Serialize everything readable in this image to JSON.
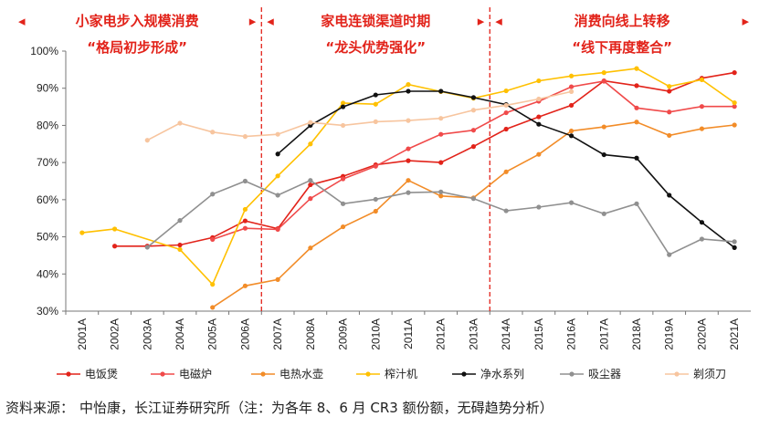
{
  "chart_data": {
    "type": "line",
    "categories": [
      "2001A",
      "2002A",
      "2003A",
      "2004A",
      "2005A",
      "2006A",
      "2007A",
      "2008A",
      "2009A",
      "2010A",
      "2011A",
      "2012A",
      "2013A",
      "2014A",
      "2015A",
      "2016A",
      "2017A",
      "2018A",
      "2019A",
      "2020A",
      "2021A"
    ],
    "ylim": [
      30,
      100
    ],
    "yticks": [
      "30%",
      "40%",
      "50%",
      "60%",
      "70%",
      "80%",
      "90%",
      "100%"
    ],
    "series": [
      {
        "name": "电饭煲",
        "color": "#e2231a",
        "values": [
          null,
          47.5,
          47.5,
          47.8,
          49.8,
          54.3,
          52.2,
          64.0,
          66.3,
          69.4,
          70.5,
          70.0,
          74.3,
          79.0,
          82.3,
          85.4,
          92.0,
          90.7,
          89.2,
          92.7,
          94.2
        ]
      },
      {
        "name": "电磁炉",
        "color": "#f04a4a",
        "values": [
          null,
          null,
          null,
          null,
          49.3,
          52.3,
          52.0,
          60.3,
          65.6,
          69.0,
          73.7,
          77.6,
          78.7,
          83.4,
          86.5,
          90.4,
          91.9,
          84.7,
          83.6,
          85.1,
          85.1
        ]
      },
      {
        "name": "电热水壶",
        "color": "#f28c28",
        "values": [
          null,
          null,
          null,
          null,
          31.0,
          36.8,
          38.5,
          47.0,
          52.7,
          56.9,
          65.2,
          61.0,
          60.5,
          67.5,
          72.2,
          78.5,
          79.6,
          80.9,
          77.3,
          79.1,
          80.1
        ]
      },
      {
        "name": "榨汁机",
        "color": "#ffc000",
        "values": [
          51.1,
          52.1,
          null,
          46.6,
          37.2,
          57.4,
          66.4,
          75.0,
          86.0,
          85.7,
          91.0,
          89.1,
          87.3,
          89.3,
          92.0,
          93.3,
          94.2,
          95.3,
          90.5,
          92.3,
          86.1
        ]
      },
      {
        "name": "净水系列",
        "color": "#111111",
        "values": [
          null,
          null,
          null,
          null,
          null,
          null,
          72.3,
          80.0,
          85.0,
          88.2,
          89.2,
          89.2,
          87.5,
          85.6,
          80.3,
          77.2,
          72.1,
          71.2,
          61.2,
          53.9,
          47.1
        ]
      },
      {
        "name": "吸尘器",
        "color": "#909090",
        "values": [
          null,
          null,
          47.2,
          54.4,
          61.5,
          65.0,
          61.2,
          65.2,
          58.9,
          60.1,
          61.9,
          62.1,
          60.3,
          57.0,
          58.0,
          59.2,
          56.2,
          58.9,
          45.2,
          49.4,
          48.7
        ]
      },
      {
        "name": "剃须刀",
        "color": "#f7c59f",
        "values": [
          null,
          null,
          76.0,
          80.6,
          78.2,
          77.0,
          77.6,
          80.8,
          80.0,
          81.0,
          81.3,
          81.9,
          84.1,
          85.4,
          87.1,
          89.1,
          null,
          null,
          null,
          null,
          null
        ]
      }
    ],
    "eras": [
      {
        "label": "小家电步入规模消费",
        "sub": "“格局初步形成”"
      },
      {
        "label": "家电连锁渠道时期",
        "sub": "“龙头优势强化”"
      },
      {
        "label": "消费向线上转移",
        "sub": "“线下再度整合”"
      }
    ],
    "era_arrows": [
      "◂",
      "▸"
    ],
    "dividers_after": [
      "2006A",
      "2013A"
    ],
    "legend_position": "bottom",
    "source_label": "资料来源：",
    "source_text": "中怡康，长江证券研究所（注：为各年 8、6 月 CR3 额份额，无碍趋势分析）"
  }
}
